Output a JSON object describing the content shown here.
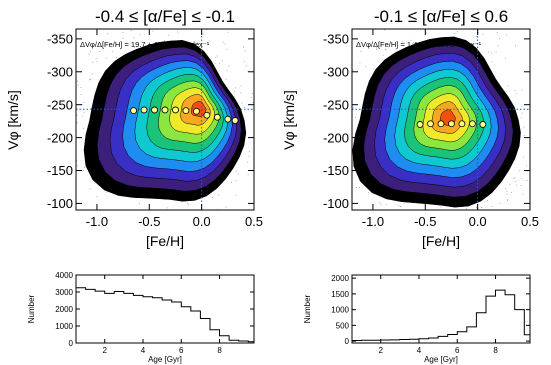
{
  "colors": {
    "level_colors": [
      "#000000",
      "#3b1f7a",
      "#3a2fc4",
      "#1e8cf0",
      "#10c8d0",
      "#19c37a",
      "#8ce640",
      "#f0e82a",
      "#f8a820",
      "#f05010"
    ],
    "scatter": "#8fa0c8",
    "reference_line": "#2a52d8",
    "trend_point_fill": "#ffff8a"
  },
  "chart_data": [
    {
      "type": "contour",
      "title": "-0.4 ≤ [α/Fe] ≤ -0.1",
      "xlabel": "[Fe/H]",
      "ylabel": "Vφ [km/s]",
      "xlim": [
        -1.2,
        0.5
      ],
      "ylim": [
        -90,
        -365
      ],
      "xticks": [
        -1.0,
        -0.5,
        0.0,
        0.5
      ],
      "xtick_labels": [
        "-1.0",
        "-0.5",
        "0.0",
        "0.5"
      ],
      "yticks": [
        -100,
        -150,
        -200,
        -250,
        -300,
        -350
      ],
      "ytick_labels": [
        "-100",
        "-150",
        "-200",
        "-250",
        "-300",
        "-350"
      ],
      "annotation": "ΔVφ/Δ[Fe/H] = 19.7 ± 1.4 km s⁻¹ dex⁻¹",
      "reference_lines": {
        "x": 0.0,
        "y": -243
      },
      "density_center": {
        "x": 0.0,
        "y": -245
      },
      "outer_extent": {
        "x": [
          -0.98,
          0.38
        ],
        "y": [
          -112,
          -340
        ]
      },
      "trend_points": {
        "x": [
          -0.65,
          -0.55,
          -0.45,
          -0.35,
          -0.25,
          -0.15,
          -0.05,
          0.05,
          0.15,
          0.25,
          0.32
        ],
        "y": [
          -241,
          -242,
          -242,
          -242,
          -242,
          -241,
          -240,
          -234,
          -231,
          -228,
          -226
        ]
      }
    },
    {
      "type": "contour",
      "title": "-0.1 ≤ [α/Fe] ≤ 0.6",
      "xlabel": "[Fe/H]",
      "ylabel": "Vφ [km/s]",
      "xlim": [
        -1.2,
        0.5
      ],
      "ylim": [
        -90,
        -365
      ],
      "xticks": [
        -1.0,
        -0.5,
        0.0,
        0.5
      ],
      "xtick_labels": [
        "-1.0",
        "-0.5",
        "0.0",
        "0.5"
      ],
      "yticks": [
        -100,
        -150,
        -200,
        -250,
        -300,
        -350
      ],
      "ytick_labels": [
        "-100",
        "-150",
        "-200",
        "-250",
        "-300",
        "-350"
      ],
      "annotation": "ΔVφ/Δ[Fe/H] = 1.4 ± 1.0 km s⁻¹ dex⁻¹",
      "reference_lines": {
        "x": 0.0,
        "y": -243
      },
      "density_center": {
        "x": -0.28,
        "y": -230
      },
      "outer_extent": {
        "x": [
          -1.05,
          0.36
        ],
        "y": [
          -110,
          -345
        ]
      },
      "trend_points": {
        "x": [
          -0.55,
          -0.45,
          -0.35,
          -0.25,
          -0.15,
          -0.05,
          0.05
        ],
        "y": [
          -220,
          -221,
          -221,
          -221,
          -221,
          -221,
          -220
        ]
      }
    },
    {
      "type": "histogram",
      "title": "",
      "xlabel": "Age [Gyr]",
      "ylabel": "Number",
      "xlim": [
        0.5,
        9.8
      ],
      "ylim": [
        0,
        4000
      ],
      "xticks": [
        2,
        4,
        6,
        8
      ],
      "xtick_labels": [
        "2",
        "4",
        "6",
        "8"
      ],
      "yticks": [
        0,
        1000,
        2000,
        3000,
        4000
      ],
      "ytick_labels": [
        "0",
        "1000",
        "2000",
        "3000",
        "4000"
      ],
      "bin_edges": [
        0.5,
        1.0,
        1.5,
        2.0,
        2.5,
        3.0,
        3.5,
        4.0,
        4.5,
        5.0,
        5.5,
        6.0,
        6.5,
        7.0,
        7.5,
        8.0,
        8.5,
        9.0,
        9.5,
        9.8
      ],
      "values": [
        3250,
        3150,
        3050,
        2920,
        3030,
        2920,
        2800,
        2720,
        2660,
        2530,
        2410,
        2130,
        1880,
        1440,
        780,
        430,
        160,
        120,
        70
      ]
    },
    {
      "type": "histogram",
      "title": "",
      "xlabel": "Age [Gyr]",
      "ylabel": "Number",
      "xlim": [
        0.5,
        9.8
      ],
      "ylim": [
        -60,
        2100
      ],
      "xticks": [
        2,
        4,
        6,
        8
      ],
      "xtick_labels": [
        "2",
        "4",
        "6",
        "8"
      ],
      "yticks": [
        0,
        500,
        1000,
        1500,
        2000
      ],
      "ytick_labels": [
        "0",
        "500",
        "1000",
        "1500",
        "2000"
      ],
      "bin_edges": [
        0.5,
        1.0,
        1.5,
        2.0,
        2.5,
        3.0,
        3.5,
        4.0,
        4.5,
        5.0,
        5.5,
        6.0,
        6.5,
        7.0,
        7.5,
        8.0,
        8.5,
        9.0,
        9.5,
        9.8
      ],
      "values": [
        20,
        25,
        30,
        35,
        40,
        50,
        60,
        75,
        100,
        150,
        210,
        300,
        450,
        900,
        1430,
        1620,
        1470,
        1000,
        200
      ]
    }
  ]
}
